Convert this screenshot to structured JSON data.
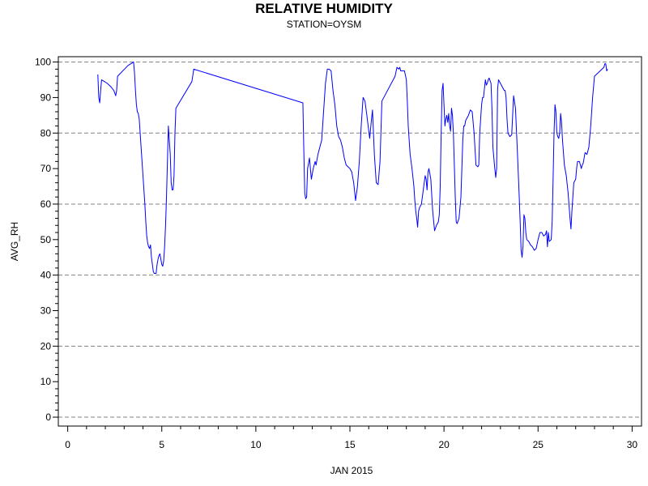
{
  "chart_data": {
    "type": "line",
    "title": "RELATIVE HUMIDITY",
    "subtitle": "STATION=OYSM",
    "xlabel": "JAN 2015",
    "ylabel": "AVG_RH",
    "xlim": [
      -0.5,
      30.5
    ],
    "ylim": [
      -2.5,
      101.5
    ],
    "x_ticks": [
      0,
      5,
      10,
      15,
      20,
      25,
      30
    ],
    "y_ticks": [
      0,
      10,
      20,
      30,
      40,
      50,
      60,
      70,
      80,
      90,
      100
    ],
    "y_gridlines": [
      0,
      20,
      40,
      60,
      80,
      100
    ],
    "grid": "horizontal dashed",
    "colors": {
      "line": "#0000ff",
      "grid": "#808080",
      "axis": "#000000"
    },
    "series": [
      {
        "x": [
          1.6,
          1.65,
          1.7,
          1.75,
          1.8,
          2.1,
          2.3,
          2.45,
          2.55,
          2.6,
          2.65,
          3.2,
          3.5,
          3.55,
          3.6,
          3.65,
          3.7,
          3.75,
          3.8,
          3.85,
          3.9,
          4.0,
          4.1,
          4.15,
          4.2,
          4.25,
          4.3,
          4.35,
          4.4,
          4.45,
          4.55,
          4.6,
          4.65,
          4.7,
          4.75,
          4.8,
          4.85,
          4.9,
          5.0,
          5.05,
          5.1,
          5.15,
          5.2,
          5.25,
          5.3,
          5.35,
          5.45,
          5.5,
          5.55,
          5.6,
          5.65,
          5.7,
          5.75,
          6.6,
          6.7,
          12.5,
          12.55,
          12.6,
          12.65,
          12.7,
          12.75,
          12.85,
          12.95,
          13.05,
          13.15,
          13.2,
          13.3,
          13.4,
          13.5,
          13.6,
          13.7,
          13.8,
          13.85,
          13.9,
          14.0,
          14.1,
          14.2,
          14.3,
          14.4,
          14.5,
          14.6,
          14.7,
          14.8,
          14.9,
          15.0,
          15.1,
          15.2,
          15.3,
          15.4,
          15.5,
          15.6,
          15.7,
          15.8,
          15.9,
          16.05,
          16.15,
          16.2,
          16.3,
          16.4,
          16.5,
          16.6,
          16.7,
          17.4,
          17.5,
          17.6,
          17.65,
          17.7,
          17.8,
          17.9,
          18.0,
          18.05,
          18.1,
          18.15,
          18.2,
          18.3,
          18.4,
          18.45,
          18.5,
          18.55,
          18.6,
          18.65,
          18.7,
          18.8,
          18.9,
          18.95,
          19.0,
          19.05,
          19.1,
          19.15,
          19.2,
          19.3,
          19.4,
          19.5,
          19.6,
          19.7,
          19.75,
          19.8,
          19.85,
          19.9,
          19.95,
          20.0,
          20.05,
          20.1,
          20.15,
          20.2,
          20.25,
          20.3,
          20.35,
          20.4,
          20.45,
          20.5,
          20.55,
          20.6,
          20.65,
          20.7,
          20.8,
          20.9,
          21.0,
          21.05,
          21.1,
          21.15,
          21.2,
          21.3,
          21.4,
          21.5,
          21.6,
          21.7,
          21.8,
          21.85,
          21.9,
          22.0,
          22.05,
          22.1,
          22.2,
          22.25,
          22.3,
          22.35,
          22.4,
          22.5,
          22.55,
          22.6,
          22.7,
          22.75,
          22.8,
          22.85,
          22.9,
          23.2,
          23.25,
          23.3,
          23.35,
          23.4,
          23.5,
          23.6,
          23.65,
          23.7,
          23.8,
          23.9,
          24.0,
          24.05,
          24.1,
          24.15,
          24.2,
          24.25,
          24.3,
          24.35,
          24.4,
          24.5,
          24.6,
          24.7,
          24.8,
          24.9,
          25.0,
          25.1,
          25.2,
          25.3,
          25.4,
          25.45,
          25.5,
          25.55,
          25.6,
          25.7,
          25.75,
          25.8,
          25.85,
          25.9,
          25.95,
          26.0,
          26.05,
          26.1,
          26.15,
          26.2,
          26.25,
          26.3,
          26.4,
          26.5,
          26.6,
          26.7,
          26.75,
          26.8,
          26.85,
          26.9,
          27.0,
          27.05,
          27.1,
          27.2,
          27.25,
          27.3,
          27.35,
          27.4,
          27.45,
          27.5,
          27.6,
          27.7,
          27.8,
          27.9,
          28.0,
          28.5,
          28.55,
          28.6,
          28.65,
          28.7
        ],
        "y": [
          96.5,
          90,
          88.5,
          92,
          95,
          94,
          93,
          92,
          90.5,
          92,
          96,
          99,
          100,
          97,
          92,
          88,
          86,
          85.5,
          84,
          80,
          76,
          68,
          60,
          55,
          51,
          49,
          48,
          47.5,
          48.5,
          45,
          41,
          40.5,
          40.5,
          40.5,
          43,
          44.5,
          45.5,
          46,
          43,
          42.5,
          44,
          48,
          54,
          62,
          72,
          82,
          74,
          66,
          64,
          64,
          68,
          80,
          87,
          94.5,
          98,
          88.5,
          75,
          63,
          61.5,
          62,
          70,
          73,
          67,
          70,
          72,
          71,
          74,
          76,
          78,
          86,
          94,
          98,
          98,
          98,
          97.5,
          92,
          88,
          82,
          79,
          78,
          76,
          73,
          71,
          70.5,
          70,
          69,
          66,
          61,
          65,
          72,
          82,
          90,
          89,
          85,
          78.5,
          84,
          86.5,
          74,
          66,
          65.5,
          72,
          89,
          96,
          98.5,
          98,
          98.5,
          97.5,
          97.5,
          97.5,
          95,
          89,
          82,
          78,
          74,
          70,
          65,
          61,
          58,
          56,
          53.5,
          58,
          59,
          60,
          64,
          66,
          68,
          67,
          64,
          69,
          70,
          67,
          58,
          52.5,
          54,
          55,
          57,
          65,
          80,
          92,
          94,
          88,
          82,
          84,
          85,
          83,
          85.5,
          82,
          80.5,
          87,
          85,
          80,
          71,
          62,
          55,
          54.5,
          56,
          62,
          78,
          82,
          82,
          83.5,
          84,
          85,
          86.5,
          86,
          80,
          71,
          70.5,
          71,
          80,
          88,
          90,
          90,
          95,
          93.5,
          94,
          95,
          95.5,
          94,
          87,
          76,
          70,
          67.5,
          70,
          92.5,
          95,
          92,
          92,
          90,
          84,
          80,
          79,
          79.5,
          85,
          90.5,
          87,
          75,
          62,
          55,
          47,
          45,
          48,
          57,
          56,
          52,
          50,
          49.5,
          48.5,
          48,
          47,
          47.5,
          50,
          52,
          52,
          51,
          51.5,
          52.5,
          48,
          52,
          49.5,
          50,
          55,
          67,
          80,
          88,
          86,
          80,
          79,
          78.5,
          80,
          85.5,
          83,
          78,
          71,
          68,
          63,
          56,
          53,
          58,
          62,
          66,
          67,
          70,
          72,
          72,
          71,
          70,
          71,
          71.5,
          73,
          74.5,
          74,
          76,
          82,
          90,
          96,
          98.5,
          99.5,
          99.5,
          97.5,
          98
        ]
      }
    ]
  }
}
